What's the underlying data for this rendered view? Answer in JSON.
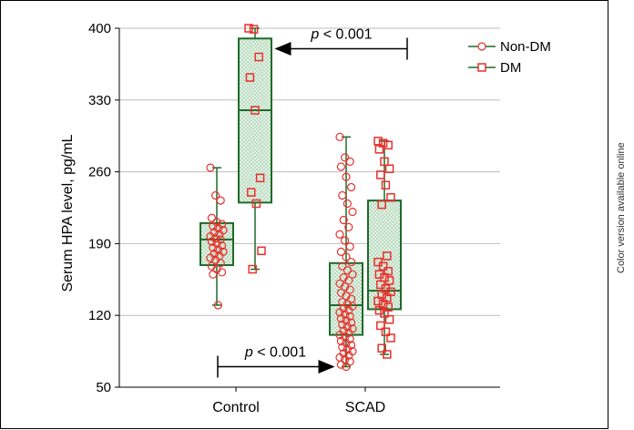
{
  "side_note": "Color version available online",
  "colors": {
    "box_fill": "#d6ecd9",
    "box_stroke": "#1f6b2a",
    "point_stroke": "#e8302c",
    "grid": "#bdbdbd",
    "arrow": "#000000"
  },
  "chart_data": {
    "type": "box",
    "ylabel": "Serum HPA level, pg/mL",
    "xlabel": "",
    "categories": [
      "Control",
      "SCAD"
    ],
    "ylim": [
      50,
      400
    ],
    "yticks": [
      50,
      120,
      190,
      260,
      330,
      400
    ],
    "grid": "horizontal",
    "legend_position": "top-right",
    "series": [
      {
        "name": "Non-DM",
        "marker": "circle",
        "boxes": [
          {
            "category": "Control",
            "min": 130,
            "q1": 169,
            "median": 194,
            "q3": 210,
            "max": 264,
            "points": [
              264,
              237,
              232,
              215,
              211,
              209,
              207,
              205,
              203,
              201,
              199,
              197,
              195,
              194,
              192,
              190,
              188,
              186,
              184,
              182,
              180,
              178,
              176,
              174,
              171,
              168,
              165,
              162,
              160,
              130
            ]
          },
          {
            "category": "SCAD",
            "min": 70,
            "q1": 101,
            "median": 130,
            "q3": 171,
            "max": 294,
            "points": [
              294,
              274,
              270,
              265,
              255,
              245,
              237,
              229,
              221,
              213,
              206,
              199,
              193,
              187,
              182,
              177,
              172,
              168,
              164,
              160,
              157,
              154,
              151,
              148,
              145,
              142,
              139,
              136,
              133,
              131,
              129,
              127,
              125,
              123,
              121,
              119,
              117,
              115,
              113,
              111,
              109,
              107,
              105,
              103,
              101,
              99,
              97,
              95,
              93,
              91,
              89,
              87,
              85,
              83,
              81,
              79,
              77,
              75,
              72,
              70
            ]
          }
        ]
      },
      {
        "name": "DM",
        "marker": "square",
        "boxes": [
          {
            "category": "Control",
            "min": 165,
            "q1": 230,
            "median": 320,
            "q3": 390,
            "max": 400,
            "points": [
              400,
              399,
              372,
              352,
              320,
              254,
              240,
              229,
              183,
              165
            ]
          },
          {
            "category": "SCAD",
            "min": 82,
            "q1": 126,
            "median": 144,
            "q3": 232,
            "max": 290,
            "points": [
              290,
              288,
              286,
              282,
              270,
              263,
              257,
              247,
              235,
              228,
              178,
              172,
              168,
              163,
              160,
              157,
              154,
              150,
              146,
              143,
              140,
              137,
              134,
              131,
              128,
              125,
              122,
              116,
              110,
              104,
              98,
              88,
              82
            ]
          }
        ]
      }
    ],
    "annotations": [
      {
        "text": "p < 0.001",
        "arrow_from_y": 380,
        "arrow_to_category": "Control",
        "arrow_from_category": "SCAD"
      },
      {
        "text": "p < 0.001",
        "arrow_from_y": 70,
        "arrow_from_category": "Control",
        "arrow_to_category": "SCAD"
      }
    ]
  }
}
